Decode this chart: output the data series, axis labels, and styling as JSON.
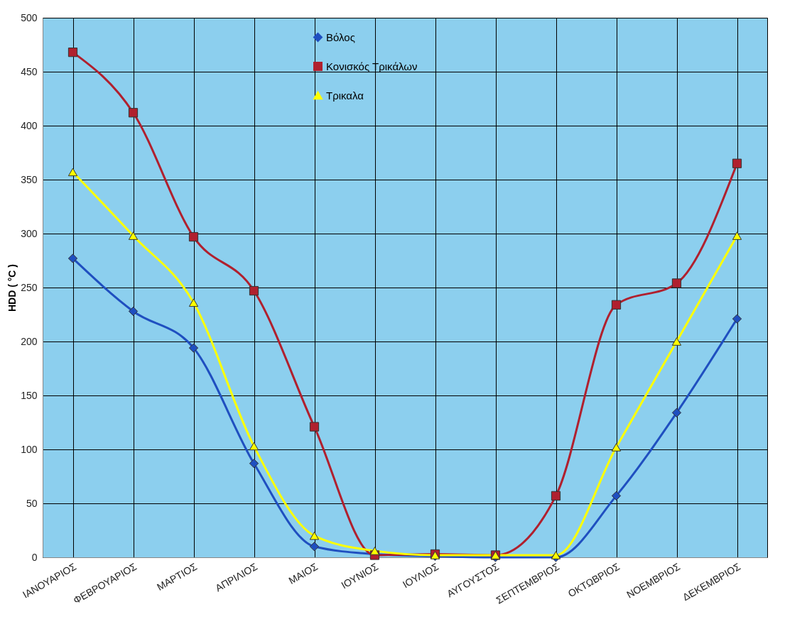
{
  "chart_data": {
    "type": "line",
    "ylabel": "HDD ( °C )",
    "categories": [
      "ΙΑΝΟΥΑΡΙΟΣ",
      "ΦΕΒΡΟΥΑΡΙΟΣ",
      "ΜΑΡΤΙΟΣ",
      "ΑΠΡΙΛΙΟΣ",
      "ΜΑΙΟΣ",
      "ΙΟΥΝΙΟΣ",
      "ΙΟΥΛΙΟΣ",
      "ΑΥΓΟΥΣΤΟΣ",
      "ΣΕΠΤΕΜΒΡΙΟΣ",
      "ΟΚΤΩΒΡΙΟΣ",
      "ΝΟΕΜΒΡΙΟΣ",
      "ΔΕΚΕΜΒΡΙΟΣ"
    ],
    "series": [
      {
        "name": "Βόλος",
        "color": "#1f4fc0",
        "marker": "diamond",
        "values": [
          277,
          228,
          194,
          87,
          10,
          3,
          1,
          0,
          0,
          57,
          134,
          221
        ]
      },
      {
        "name": "Κονισκός Τρικάλων",
        "color": "#b0202e",
        "marker": "square",
        "values": [
          468,
          412,
          297,
          247,
          121,
          2,
          3,
          2,
          57,
          234,
          254,
          365
        ]
      },
      {
        "name": "Τρικαλα",
        "color": "#ffff00",
        "marker": "triangle",
        "values": [
          357,
          298,
          236,
          103,
          20,
          6,
          2,
          2,
          2,
          102,
          200,
          298
        ]
      }
    ],
    "ylim": [
      0,
      500
    ],
    "yticks": [
      0,
      50,
      100,
      150,
      200,
      250,
      300,
      350,
      400,
      450,
      500
    ],
    "grid": true,
    "legend": "top"
  }
}
